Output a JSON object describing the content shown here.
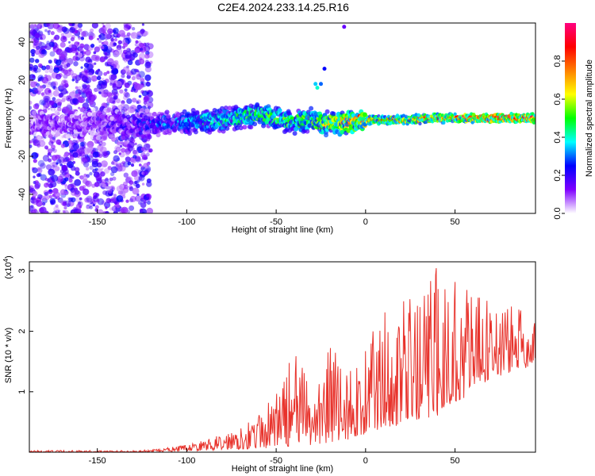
{
  "figure": {
    "title": "C2E4.2024.233.14.25.R16"
  },
  "chart_data": [
    {
      "type": "heatmap",
      "xlabel": "Height of straight line (km)",
      "ylabel": "Frequency (Hz)",
      "xlim": [
        -188,
        95
      ],
      "ylim": [
        -50,
        50
      ],
      "xticks": [
        -150,
        -100,
        -50,
        0,
        50
      ],
      "yticks": [
        -40,
        -20,
        0,
        20,
        40
      ],
      "colorbar": {
        "label": "Normalized spectral amplitude",
        "range": [
          0,
          1
        ],
        "ticks": [
          0.0,
          0.2,
          0.4,
          0.6,
          0.8
        ],
        "colormap": [
          "#ffffff",
          "#7f00ff",
          "#0000ff",
          "#00ffff",
          "#00ff00",
          "#ffff00",
          "#ff8000",
          "#ff0000",
          "#ff0080"
        ]
      },
      "ridge": {
        "x": [
          -188,
          -150,
          -120,
          -100,
          -80,
          -60,
          -50,
          -40,
          -30,
          -20,
          -10,
          0,
          20,
          40,
          60,
          95
        ],
        "frequency": [
          -3,
          -3,
          -3,
          -2,
          -1,
          2,
          0,
          -2,
          -1,
          -3,
          -2,
          -1,
          -1,
          0,
          0,
          0
        ],
        "amplitude": [
          0.12,
          0.12,
          0.25,
          0.35,
          0.45,
          0.5,
          0.5,
          0.5,
          0.55,
          0.7,
          0.75,
          0.8,
          0.8,
          0.85,
          0.95,
          1.0
        ]
      },
      "grid": false,
      "legend": "none"
    },
    {
      "type": "line",
      "xlabel": "Height of straight line (km)",
      "ylabel": "SNR (10 * v/v)",
      "yscale_label": "(x10^4)",
      "xlim": [
        -188,
        95
      ],
      "ylim": [
        0,
        3.15
      ],
      "xticks": [
        -150,
        -100,
        -50,
        0,
        50
      ],
      "yticks": [
        1,
        2,
        3
      ],
      "series": [
        {
          "color": "#e8332c",
          "x": [
            -188,
            -170,
            -150,
            -130,
            -120,
            -110,
            -100,
            -90,
            -80,
            -70,
            -60,
            -50,
            -40,
            -30,
            -20,
            -10,
            0,
            10,
            20,
            30,
            40,
            50,
            60,
            70,
            80,
            90,
            95
          ],
          "envelope_low": [
            0.0,
            0.0,
            0.0,
            0.0,
            0.0,
            0.01,
            0.02,
            0.03,
            0.04,
            0.05,
            0.06,
            0.08,
            0.1,
            0.1,
            0.15,
            0.2,
            0.3,
            0.4,
            0.45,
            0.5,
            0.6,
            0.8,
            1.0,
            1.2,
            1.3,
            1.4,
            1.5
          ],
          "envelope_high": [
            0.03,
            0.03,
            0.03,
            0.03,
            0.04,
            0.08,
            0.12,
            0.2,
            0.3,
            0.5,
            0.6,
            1.0,
            1.7,
            1.1,
            1.9,
            1.4,
            1.7,
            2.5,
            2.5,
            2.6,
            3.1,
            3.0,
            2.7,
            2.6,
            2.5,
            2.3,
            2.2
          ]
        }
      ],
      "grid": false,
      "legend": "none"
    }
  ]
}
